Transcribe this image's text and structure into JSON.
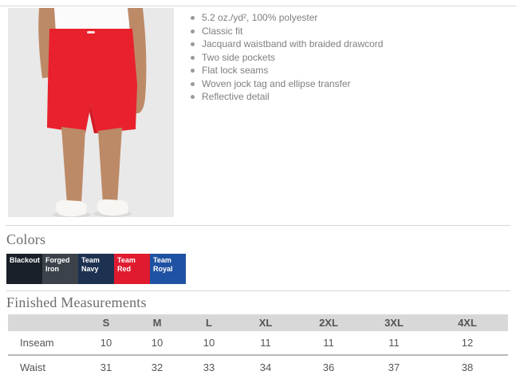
{
  "product": {
    "image_alt": "Model wearing red athletic shorts with white shirt and white shoes",
    "features": [
      "5.2 oz./yd², 100% polyester",
      "Classic fit",
      "Jacquard waistband with braided drawcord",
      "Two side pockets",
      "Flat lock seams",
      "Woven jock tag and ellipse transfer",
      "Reflective detail"
    ]
  },
  "colors_section": {
    "heading": "Colors",
    "swatches": [
      {
        "name": "Blackout",
        "hex": "#1a2028"
      },
      {
        "name": "Forged Iron",
        "hex": "#3b424a"
      },
      {
        "name": "Team Navy",
        "hex": "#1d3150"
      },
      {
        "name": "Team Red",
        "hex": "#e01b2f"
      },
      {
        "name": "Team Royal",
        "hex": "#1f52a2"
      }
    ]
  },
  "measurements": {
    "heading": "Finished Measurements",
    "columns": [
      "",
      "S",
      "M",
      "L",
      "XL",
      "2XL",
      "3XL",
      "4XL"
    ],
    "rows": [
      {
        "label": "Inseam",
        "values": [
          "10",
          "10",
          "10",
          "11",
          "11",
          "11",
          "12"
        ]
      },
      {
        "label": "Waist",
        "values": [
          "31",
          "32",
          "33",
          "34",
          "36",
          "37",
          "38"
        ]
      }
    ]
  },
  "illustration": {
    "background": "#e9e9e9",
    "shirt_color": "#fbfbfb",
    "skin_color": "#bd8a67",
    "shorts_color": "#e8212d",
    "shorts_shade": "#d41824",
    "shoe_color": "#f7f6f2",
    "shadow_color": "#d9d9d9"
  }
}
